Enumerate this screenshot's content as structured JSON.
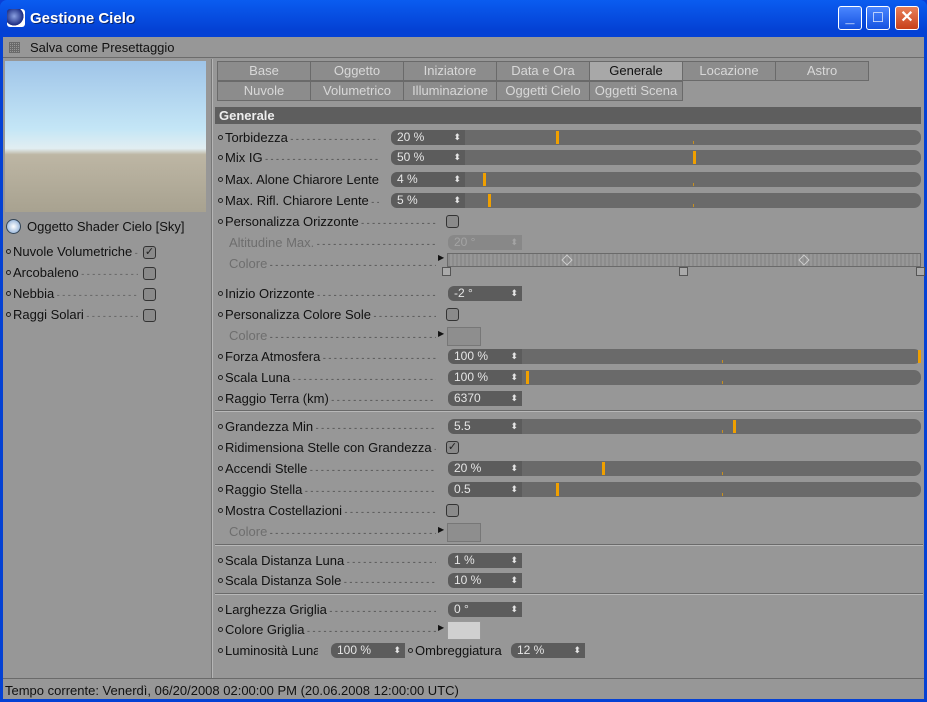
{
  "window": {
    "title": "Gestione Cielo"
  },
  "toolbar": {
    "preset_label": "Salva come Presettaggio"
  },
  "left": {
    "object_label": "Oggetto Shader Cielo [Sky]",
    "items": [
      {
        "label": "Nuvole Volumetriche",
        "checked": true
      },
      {
        "label": "Arcobaleno",
        "checked": false
      },
      {
        "label": "Nebbia",
        "checked": false
      },
      {
        "label": "Raggi Solari",
        "checked": false
      }
    ]
  },
  "tabs": {
    "row1": [
      "Base",
      "Oggetto",
      "Iniziatore",
      "Data e Ora",
      "Generale",
      "Locazione",
      "Astro"
    ],
    "row2": [
      "Nuvole",
      "Volumetrico",
      "Illuminazione",
      "Oggetti Cielo",
      "Oggetti Scena"
    ],
    "active": "Generale"
  },
  "section_title": "Generale",
  "rows": [
    {
      "type": "slider",
      "label": "Torbidezza",
      "value": "20 %",
      "fraction": 0.2
    },
    {
      "type": "slider",
      "label": "Mix IG",
      "value": "50 %",
      "fraction": 0.5
    },
    {
      "type": "slider",
      "label": "Max. Alone Chiarore Lente",
      "value": "4 %",
      "fraction": 0.04
    },
    {
      "type": "slider",
      "label": "Max. Rifl. Chiarore Lente",
      "value": "5 %",
      "fraction": 0.05
    },
    {
      "type": "check",
      "label": "Personalizza Orizzonte",
      "checked": false
    },
    {
      "type": "field",
      "label": "Altitudine Max.",
      "value": "20 °",
      "disabled": true
    },
    {
      "type": "gradient",
      "label": "Colore",
      "disabled": true
    },
    {
      "type": "field",
      "label": "Inizio Orizzonte",
      "value": "-2 °"
    },
    {
      "type": "check",
      "label": "Personalizza Colore Sole",
      "checked": false
    },
    {
      "type": "color",
      "label": "Colore",
      "disabled": true
    },
    {
      "type": "slider",
      "label": "Forza Atmosfera",
      "value": "100 %",
      "fraction": 1.0
    },
    {
      "type": "slider",
      "label": "Scala Luna",
      "value": "100 %",
      "fraction": 0.01
    },
    {
      "type": "field",
      "label": "Raggio Terra (km)",
      "value": "6370"
    },
    {
      "type": "sep"
    },
    {
      "type": "slider",
      "label": "Grandezza Min",
      "value": "5.5",
      "fraction": 0.53
    },
    {
      "type": "check",
      "label": "Ridimensiona Stelle con Grandezza",
      "checked": true
    },
    {
      "type": "slider",
      "label": "Accendi Stelle",
      "value": "20 %",
      "fraction": 0.2
    },
    {
      "type": "slider",
      "label": "Raggio Stella",
      "value": "0.5",
      "fraction": 0.085
    },
    {
      "type": "check",
      "label": "Mostra Costellazioni",
      "checked": false
    },
    {
      "type": "color",
      "label": "Colore",
      "disabled": true
    },
    {
      "type": "sep"
    },
    {
      "type": "field",
      "label": "Scala Distanza Luna",
      "value": "1 %"
    },
    {
      "type": "field",
      "label": "Scala Distanza Sole",
      "value": "10 %"
    },
    {
      "type": "sep"
    },
    {
      "type": "field",
      "label": "Larghezza Griglia",
      "value": "0 °"
    },
    {
      "type": "color",
      "label": "Colore Griglia",
      "color": "#d0d0d0"
    },
    {
      "type": "pair",
      "label": "Luminosità Luna",
      "value": "100 %",
      "label2": "Ombreggiatura",
      "value2": "12 %"
    }
  ],
  "status": "Tempo corrente: Venerdì, 06/20/2008 02:00:00 PM  (20.06.2008  12:00:00 UTC)",
  "colors": {
    "titlebar": "#0441d4",
    "background": "#979797",
    "slider_marker": "#f0a000"
  }
}
